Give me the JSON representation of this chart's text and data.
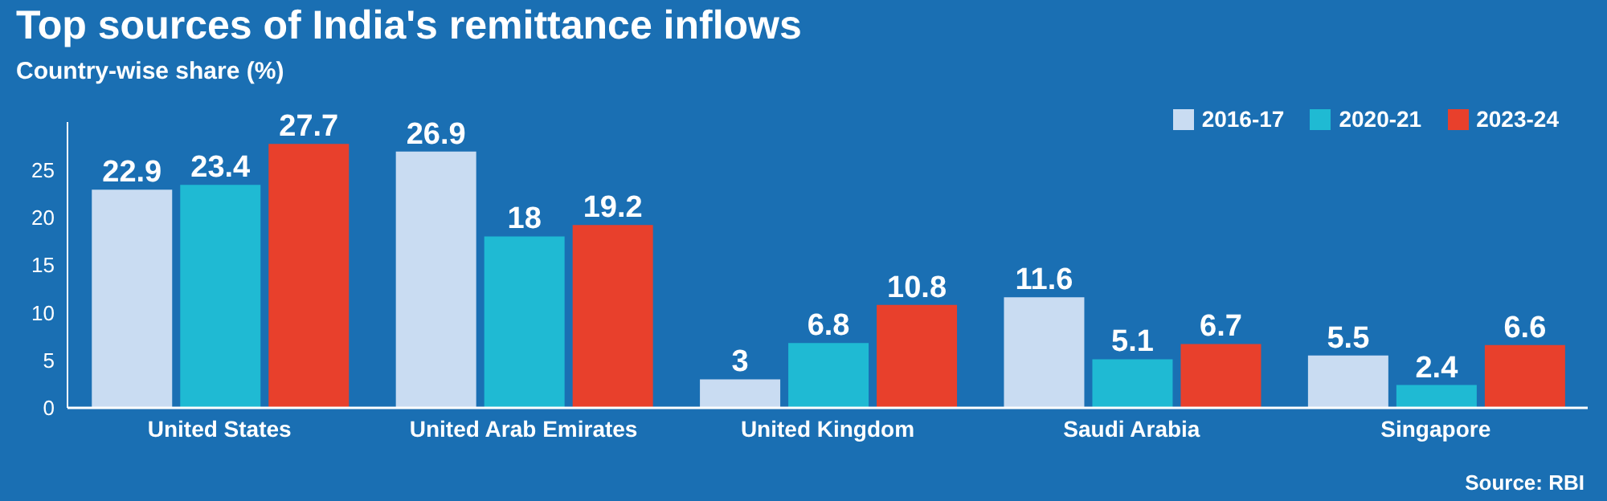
{
  "chart_data": {
    "type": "bar",
    "title": "Top sources of India's remittance inflows",
    "subtitle": "Country-wise share (%)",
    "categories": [
      "United States",
      "United Arab Emirates",
      "United Kingdom",
      "Saudi Arabia",
      "Singapore"
    ],
    "series": [
      {
        "name": "2016-17",
        "color": "#c9dcf2",
        "values": [
          22.9,
          26.9,
          3,
          11.6,
          5.5
        ]
      },
      {
        "name": "2020-21",
        "color": "#1fbad3",
        "values": [
          23.4,
          18,
          6.8,
          5.1,
          2.4
        ]
      },
      {
        "name": "2023-24",
        "color": "#e8402c",
        "values": [
          27.7,
          19.2,
          10.8,
          6.7,
          6.6
        ]
      }
    ],
    "ylim": [
      0,
      30
    ],
    "yticks": [
      0,
      5,
      10,
      15,
      20,
      25
    ],
    "grid": false,
    "legend": "top right",
    "data_labels": true,
    "annotations": [
      "Source: RBI"
    ]
  }
}
